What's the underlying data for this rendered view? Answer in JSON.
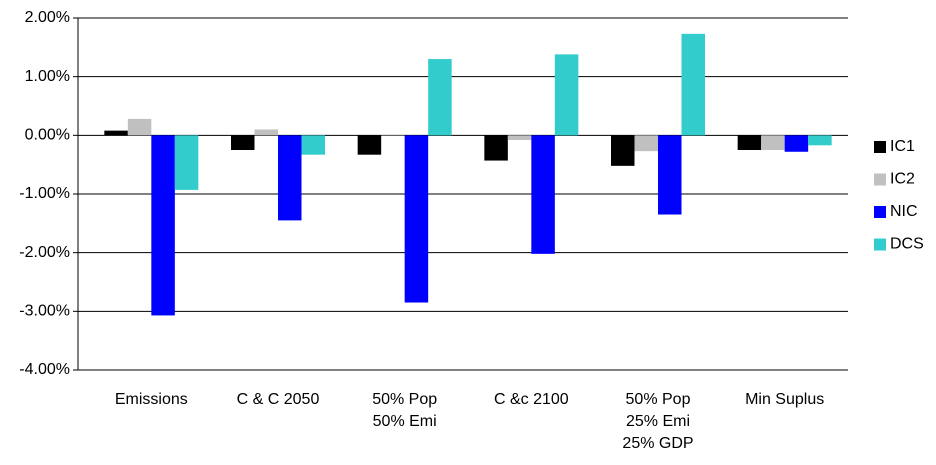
{
  "chart_data": {
    "type": "bar",
    "categories": [
      "Emissions",
      "C & C 2050",
      "50% Pop\n50% Emi",
      "C &c 2100",
      "50% Pop\n25% Emi\n25% GDP",
      "Min Suplus"
    ],
    "series": [
      {
        "name": "IC1",
        "color": "#000000",
        "values": [
          0.08,
          -0.25,
          -0.33,
          -0.43,
          -0.52,
          -0.25
        ]
      },
      {
        "name": "IC2",
        "color": "#c0c0c0",
        "values": [
          0.28,
          0.1,
          0.01,
          -0.08,
          -0.27,
          -0.25
        ]
      },
      {
        "name": "NIC",
        "color": "#0000ff",
        "values": [
          -3.07,
          -1.45,
          -2.85,
          -2.02,
          -1.35,
          -0.28
        ]
      },
      {
        "name": "DCS",
        "color": "#33cccc",
        "values": [
          -0.93,
          -0.33,
          1.3,
          1.38,
          1.73,
          -0.17
        ]
      }
    ],
    "ylim": [
      -4,
      2
    ],
    "yticks": [
      {
        "value": 2,
        "label": "2.00%"
      },
      {
        "value": 1,
        "label": "1.00%"
      },
      {
        "value": 0,
        "label": "0.00%"
      },
      {
        "value": -1,
        "label": "-1.00%"
      },
      {
        "value": -2,
        "label": "-2.00%"
      },
      {
        "value": -3,
        "label": "-3.00%"
      },
      {
        "value": -4,
        "label": "-4.00%"
      }
    ],
    "grid": true,
    "legend": "right"
  }
}
